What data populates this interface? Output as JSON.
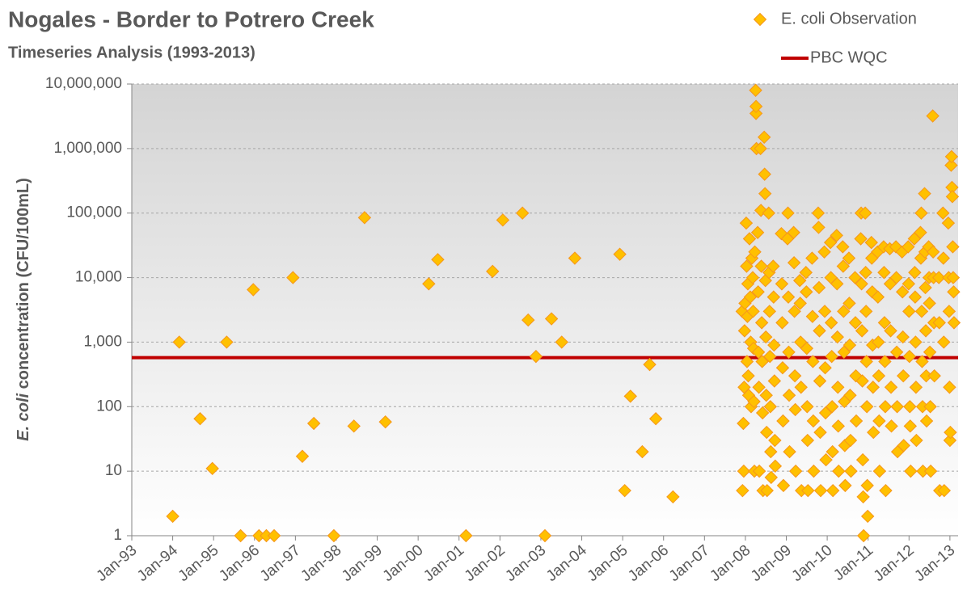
{
  "chart_data": {
    "type": "scatter",
    "title": "Nogales - Border to Potrero Creek",
    "subtitle": "Timeseries Analysis (1993-2013)",
    "ylabel": {
      "italic": "E. coli",
      "rest": "concentration (CFU/100mL)"
    },
    "log_y": true,
    "grid": true,
    "legend": "top-right",
    "xlim": [
      1993,
      2013.2
    ],
    "xticks": [
      {
        "value": 1993,
        "label": "Jan-93"
      },
      {
        "value": 1994,
        "label": "Jan-94"
      },
      {
        "value": 1995,
        "label": "Jan-95"
      },
      {
        "value": 1996,
        "label": "Jan-96"
      },
      {
        "value": 1997,
        "label": "Jan-97"
      },
      {
        "value": 1998,
        "label": "Jan-98"
      },
      {
        "value": 1999,
        "label": "Jan-99"
      },
      {
        "value": 2000,
        "label": "Jan-00"
      },
      {
        "value": 2001,
        "label": "Jan-01"
      },
      {
        "value": 2002,
        "label": "Jan-02"
      },
      {
        "value": 2003,
        "label": "Jan-03"
      },
      {
        "value": 2004,
        "label": "Jan-04"
      },
      {
        "value": 2005,
        "label": "Jan-05"
      },
      {
        "value": 2006,
        "label": "Jan-06"
      },
      {
        "value": 2007,
        "label": "Jan-07"
      },
      {
        "value": 2008,
        "label": "Jan-08"
      },
      {
        "value": 2009,
        "label": "Jan-09"
      },
      {
        "value": 2010,
        "label": "Jan-10"
      },
      {
        "value": 2011,
        "label": "Jan-11"
      },
      {
        "value": 2012,
        "label": "Jan-12"
      },
      {
        "value": 2013,
        "label": "Jan-13"
      }
    ],
    "ylim": [
      1,
      10000000
    ],
    "yticks": [
      1,
      10,
      100,
      {
        "value": 1000,
        "label": "1,000"
      },
      {
        "value": 10000,
        "label": "10,000"
      },
      {
        "value": 100000,
        "label": "100,000"
      },
      {
        "value": 1000000,
        "label": "1,000,000"
      },
      {
        "value": 10000000,
        "label": "10,000,000"
      }
    ],
    "hline": {
      "name": "PBC WQC",
      "value": 575,
      "color": "#c00000"
    },
    "x": [
      1994.0,
      1994.16,
      1994.67,
      1994.97,
      1995.32,
      1995.66,
      1995.97,
      1996.11,
      1996.29,
      1996.48,
      1996.94,
      1997.17,
      1997.45,
      1997.94,
      1998.43,
      1998.69,
      1999.2,
      2000.26,
      2000.48,
      2001.17,
      2001.82,
      2002.07,
      2002.55,
      2002.69,
      2002.88,
      2003.1,
      2003.26,
      2003.51,
      2003.83,
      2004.93,
      2005.05,
      2005.19,
      2005.48,
      2005.66,
      2005.81,
      2006.23,
      2007.92,
      2007.93,
      2007.95,
      2007.96,
      2007.97,
      2007.98,
      2007.99,
      2008.02,
      2008.03,
      2008.04,
      2008.05,
      2008.06,
      2008.07,
      2008.08,
      2008.1,
      2008.12,
      2008.13,
      2008.14,
      2008.16,
      2008.18,
      2008.19,
      2008.2,
      2008.21,
      2008.22,
      2008.23,
      2008.25,
      2008.26,
      2008.26,
      2008.27,
      2008.3,
      2008.31,
      2008.32,
      2008.33,
      2008.34,
      2008.37,
      2008.38,
      2008.39,
      2008.4,
      2008.41,
      2008.42,
      2008.43,
      2008.46,
      2008.47,
      2008.48,
      2008.49,
      2008.5,
      2008.51,
      2008.52,
      2008.53,
      2008.57,
      2008.58,
      2008.59,
      2008.6,
      2008.61,
      2008.62,
      2008.63,
      2008.68,
      2008.69,
      2008.7,
      2008.71,
      2008.72,
      2008.73,
      2008.88,
      2008.89,
      2008.9,
      2008.91,
      2008.92,
      2008.93,
      2009.03,
      2009.04,
      2009.05,
      2009.06,
      2009.07,
      2009.08,
      2009.18,
      2009.19,
      2009.2,
      2009.21,
      2009.22,
      2009.23,
      2009.33,
      2009.34,
      2009.35,
      2009.36,
      2009.37,
      2009.48,
      2009.49,
      2009.5,
      2009.51,
      2009.52,
      2009.53,
      2009.63,
      2009.64,
      2009.65,
      2009.66,
      2009.67,
      2009.78,
      2009.79,
      2009.8,
      2009.81,
      2009.82,
      2009.83,
      2009.84,
      2009.93,
      2009.94,
      2009.95,
      2009.96,
      2009.97,
      2010.08,
      2010.09,
      2010.1,
      2010.11,
      2010.12,
      2010.13,
      2010.14,
      2010.23,
      2010.24,
      2010.25,
      2010.26,
      2010.27,
      2010.28,
      2010.38,
      2010.39,
      2010.4,
      2010.41,
      2010.42,
      2010.43,
      2010.44,
      2010.53,
      2010.54,
      2010.55,
      2010.56,
      2010.57,
      2010.58,
      2010.68,
      2010.69,
      2010.7,
      2010.71,
      2010.82,
      2010.83,
      2010.84,
      2010.85,
      2010.86,
      2010.87,
      2010.88,
      2010.89,
      2010.93,
      2010.94,
      2010.95,
      2010.96,
      2010.97,
      2010.98,
      2010.99,
      2011.08,
      2011.09,
      2011.1,
      2011.11,
      2011.12,
      2011.13,
      2011.23,
      2011.24,
      2011.25,
      2011.26,
      2011.27,
      2011.28,
      2011.38,
      2011.39,
      2011.4,
      2011.41,
      2011.42,
      2011.43,
      2011.53,
      2011.54,
      2011.55,
      2011.56,
      2011.57,
      2011.68,
      2011.69,
      2011.7,
      2011.71,
      2011.72,
      2011.83,
      2011.84,
      2011.85,
      2011.86,
      2011.87,
      2011.98,
      2011.99,
      2012.0,
      2012.01,
      2012.02,
      2012.03,
      2012.04,
      2012.13,
      2012.14,
      2012.15,
      2012.16,
      2012.17,
      2012.18,
      2012.28,
      2012.29,
      2012.3,
      2012.31,
      2012.32,
      2012.33,
      2012.34,
      2012.38,
      2012.39,
      2012.4,
      2012.41,
      2012.42,
      2012.43,
      2012.48,
      2012.49,
      2012.5,
      2012.51,
      2012.52,
      2012.53,
      2012.58,
      2012.59,
      2012.6,
      2012.61,
      2012.62,
      2012.73,
      2012.74,
      2012.75,
      2012.83,
      2012.84,
      2012.85,
      2012.86,
      2012.96,
      2012.97,
      2012.98,
      2012.99,
      2013.0,
      2013.01,
      2013.03,
      2013.04,
      2013.05,
      2013.06,
      2013.07,
      2013.08,
      2013.09,
      2013.1
    ],
    "series": [
      {
        "name": "E. coli Observation",
        "color": "#ffc000",
        "stroke": "#f5961e",
        "values": [
          2,
          1000,
          65,
          11,
          1000,
          1,
          6500,
          1,
          1,
          1,
          10000,
          17,
          55,
          1,
          50,
          85000,
          58,
          8000,
          19000,
          1,
          12500,
          78000,
          100000,
          2200,
          600,
          1,
          2300,
          1000,
          20000,
          23000,
          5,
          145,
          20,
          450,
          65,
          4,
          3000,
          5,
          55,
          10,
          200,
          1500,
          4000,
          70000,
          15000,
          500,
          2500,
          8000,
          300,
          150,
          40000,
          5000,
          1000,
          100,
          20000,
          10000,
          3000,
          800,
          120,
          10,
          25000,
          8000000,
          3500000,
          4500000,
          1000000,
          50000,
          6000,
          700,
          200,
          10,
          1000000,
          110000,
          15000,
          2000,
          500,
          80,
          5,
          1500000,
          400000,
          200000,
          9000,
          1200,
          150,
          40,
          5,
          100000,
          12000,
          3000,
          600,
          100,
          20,
          8,
          15000,
          5000,
          900,
          250,
          30,
          12,
          48000,
          8000,
          2000,
          400,
          60,
          6,
          40000,
          100000,
          5000,
          700,
          150,
          20,
          50000,
          17000,
          3000,
          300,
          90,
          10,
          9000,
          4000,
          1000,
          200,
          5,
          12000,
          6000,
          800,
          100,
          30,
          5,
          20000,
          2500,
          500,
          60,
          10,
          100000,
          60000,
          7000,
          1500,
          250,
          40,
          5,
          25000,
          3000,
          400,
          80,
          15,
          35000,
          10000,
          2000,
          600,
          100,
          20,
          5,
          45000,
          8000,
          1200,
          200,
          50,
          10,
          30000,
          15000,
          3000,
          700,
          120,
          25,
          6,
          20000,
          4000,
          900,
          150,
          30,
          10,
          10000,
          2000,
          300,
          60,
          40000,
          100000,
          8000,
          1500,
          250,
          15,
          4,
          1,
          100000,
          12000,
          3000,
          500,
          100,
          6,
          2,
          35000,
          20000,
          6000,
          900,
          200,
          40,
          25000,
          5000,
          1000,
          300,
          60,
          10,
          30000,
          12000,
          2000,
          500,
          100,
          5,
          28000,
          8000,
          1500,
          200,
          50,
          30000,
          10000,
          700,
          100,
          20,
          25000,
          6000,
          1200,
          300,
          25,
          30000,
          8000,
          3000,
          600,
          100,
          50,
          10,
          40000,
          12000,
          5000,
          1000,
          200,
          30,
          50000,
          20000,
          100000,
          3000,
          500,
          100,
          10,
          200000,
          25000,
          7000,
          1500,
          300,
          60,
          30000,
          10000,
          4000,
          700,
          100,
          10,
          3200000,
          25000,
          10000,
          2000,
          300,
          10000,
          2000,
          5,
          100000,
          20000,
          1000,
          5,
          70000,
          10000,
          3000,
          200,
          30,
          40,
          550000,
          750000,
          250000,
          180000,
          30000,
          10000,
          6000,
          2000
        ]
      }
    ]
  }
}
